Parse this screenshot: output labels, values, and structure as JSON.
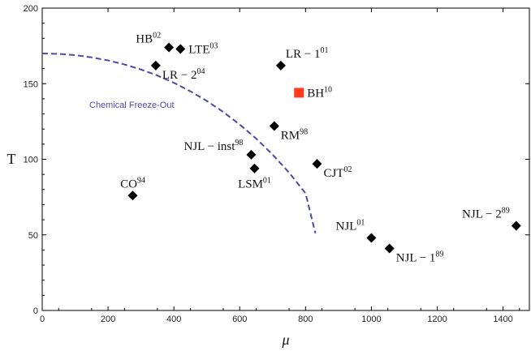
{
  "chart_data": {
    "type": "scatter",
    "title": "",
    "xlabel": "μ",
    "ylabel": "T",
    "xlim": [
      0,
      1480
    ],
    "ylim": [
      0,
      200
    ],
    "x_ticks": [
      0,
      200,
      400,
      600,
      800,
      1000,
      1200,
      1400
    ],
    "y_ticks": [
      0,
      50,
      100,
      150,
      200
    ],
    "grid": false,
    "colors": {
      "points": "#000000",
      "highlight": "#ff3b1f",
      "curve": "#4a4aa8"
    },
    "points": [
      {
        "base": "HB",
        "sup": "02",
        "x": 385,
        "y": 174,
        "marker": "diamond",
        "color": "#000000",
        "label_pos": "left"
      },
      {
        "base": "LTE",
        "sup": "03",
        "x": 420,
        "y": 173,
        "marker": "diamond",
        "color": "#000000",
        "label_pos": "right"
      },
      {
        "base": "LR − 2",
        "sup": "04",
        "x": 345,
        "y": 162,
        "marker": "diamond",
        "color": "#000000",
        "label_pos": "below-right"
      },
      {
        "base": "LR − 1",
        "sup": "01",
        "x": 725,
        "y": 162,
        "marker": "diamond",
        "color": "#000000",
        "label_pos": "above-right"
      },
      {
        "base": "BH",
        "sup": "10",
        "x": 780,
        "y": 144,
        "marker": "square",
        "color": "#ff3b1f",
        "label_pos": "right"
      },
      {
        "base": "RM",
        "sup": "98",
        "x": 705,
        "y": 122,
        "marker": "diamond",
        "color": "#000000",
        "label_pos": "below-right"
      },
      {
        "base": "NJL − inst",
        "sup": "98",
        "x": 635,
        "y": 103,
        "marker": "diamond",
        "color": "#000000",
        "label_pos": "left"
      },
      {
        "base": "LSM",
        "sup": "01",
        "x": 645,
        "y": 94,
        "marker": "diamond",
        "color": "#000000",
        "label_pos": "below"
      },
      {
        "base": "CJT",
        "sup": "02",
        "x": 835,
        "y": 97,
        "marker": "diamond",
        "color": "#000000",
        "label_pos": "below-right"
      },
      {
        "base": "CO",
        "sup": "94",
        "x": 275,
        "y": 76,
        "marker": "diamond",
        "color": "#000000",
        "label_pos": "above"
      },
      {
        "base": "NJL",
        "sup": "01",
        "x": 1000,
        "y": 48,
        "marker": "diamond",
        "color": "#000000",
        "label_pos": "above-left"
      },
      {
        "base": "NJL − 1",
        "sup": "89",
        "x": 1055,
        "y": 41,
        "marker": "diamond",
        "color": "#000000",
        "label_pos": "below-right"
      },
      {
        "base": "NJL − 2",
        "sup": "89",
        "x": 1440,
        "y": 56,
        "marker": "diamond",
        "color": "#000000",
        "label_pos": "above-left"
      }
    ],
    "curve": {
      "name": "Chemical Freeze-Out",
      "style": "dashed",
      "x": [
        0,
        50,
        100,
        150,
        200,
        250,
        300,
        350,
        400,
        450,
        500,
        550,
        600,
        650,
        700,
        750,
        800,
        830
      ],
      "y": [
        170,
        169.7,
        168.9,
        167.4,
        165.4,
        162.7,
        159.4,
        155.4,
        150.6,
        145.0,
        138.6,
        131.3,
        123.0,
        113.7,
        103.1,
        91.2,
        77.5,
        51
      ]
    }
  }
}
